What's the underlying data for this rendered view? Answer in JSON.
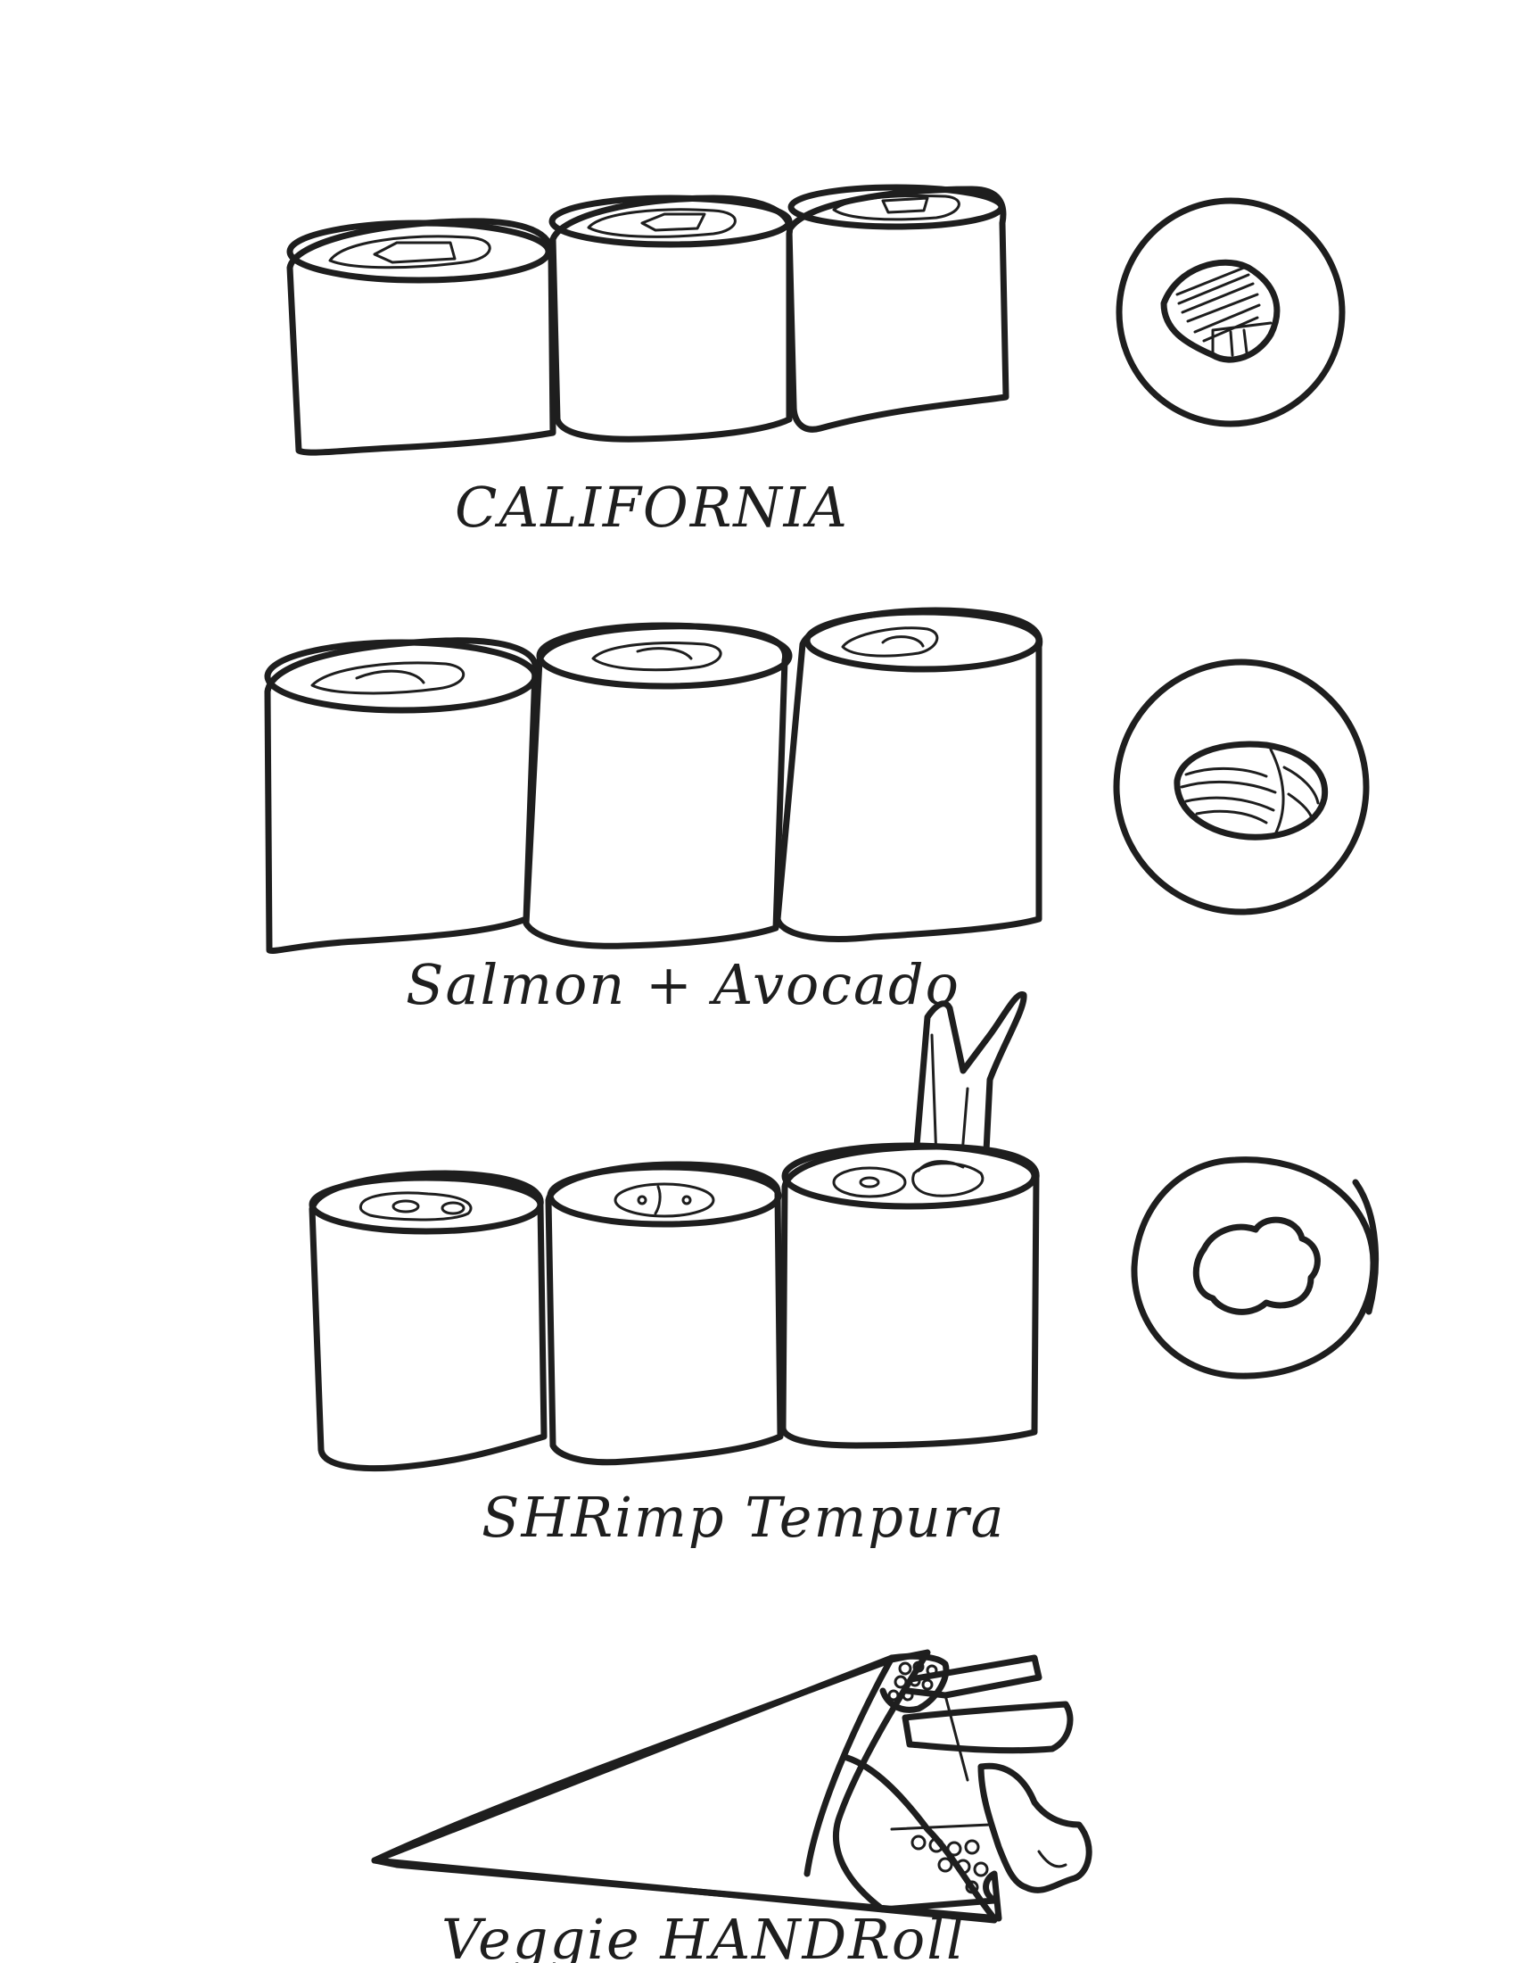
{
  "labels": {
    "california": "CALIFORNIA",
    "salmon_avocado": "Salmon + Avocado",
    "shrimp_tempura": "SHRimp Tempura",
    "veggie_handroll": "Veggie HANDRoll"
  },
  "ink_color": "#1e1e1e",
  "background": "#ffffff"
}
